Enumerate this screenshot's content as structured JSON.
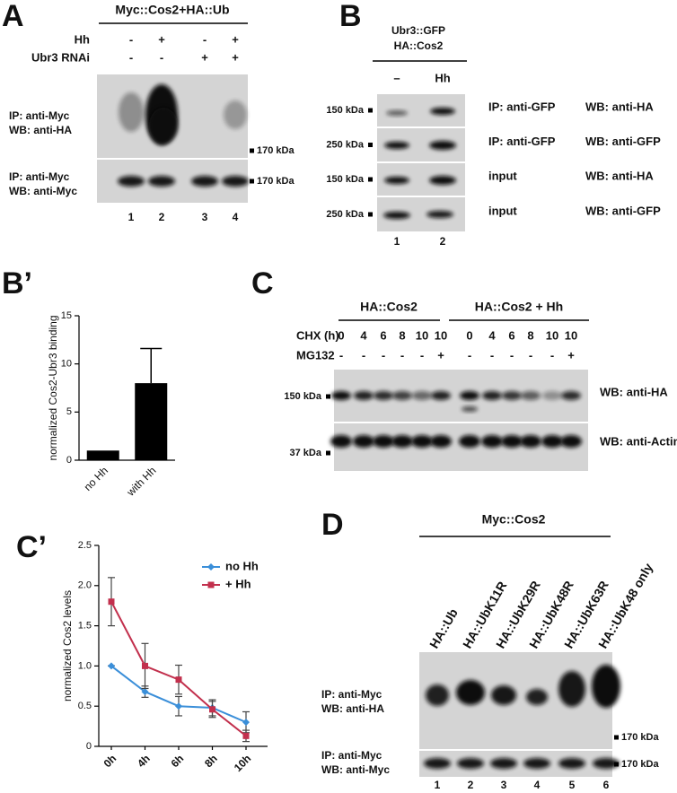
{
  "panel_a": {
    "label": "A",
    "title": "Myc::Cos2+HA::Ub",
    "conditions": [
      {
        "name": "Hh",
        "values": [
          "-",
          "+",
          "-",
          "+"
        ]
      },
      {
        "name": "Ubr3 RNAi",
        "values": [
          "-",
          "-",
          "+",
          "+"
        ]
      }
    ],
    "blots": [
      {
        "lines": [
          "IP: anti-Myc",
          "WB: anti-HA"
        ],
        "marker": "170 kDa"
      },
      {
        "lines": [
          "IP: anti-Myc",
          "WB: anti-Myc"
        ],
        "marker": "170 kDa"
      }
    ],
    "lanes": [
      "1",
      "2",
      "3",
      "4"
    ]
  },
  "panel_b": {
    "label": "B",
    "constructs": [
      "Ubr3::GFP",
      "HA::Cos2"
    ],
    "conditions": [
      "–",
      "Hh"
    ],
    "blots": [
      {
        "marker": "150 kDa",
        "lines": [
          "IP: anti-GFP",
          "WB: anti-HA"
        ]
      },
      {
        "marker": "250 kDa",
        "lines": [
          "IP: anti-GFP",
          "WB: anti-GFP"
        ]
      },
      {
        "marker": "150 kDa",
        "lines": [
          "input",
          "WB: anti-HA"
        ]
      },
      {
        "marker": "250 kDa",
        "lines": [
          "input",
          "WB: anti-GFP"
        ]
      }
    ],
    "lanes": [
      "1",
      "2"
    ]
  },
  "panel_c": {
    "label": "C",
    "groups": [
      "HA::Cos2",
      "HA::Cos2 + Hh"
    ],
    "conditions": [
      {
        "name": "CHX (h)",
        "values": [
          "0",
          "4",
          "6",
          "8",
          "10",
          "10",
          "0",
          "4",
          "6",
          "8",
          "10",
          "10"
        ]
      },
      {
        "name": "MG132",
        "values": [
          "-",
          "-",
          "-",
          "-",
          "-",
          "+",
          "-",
          "-",
          "-",
          "-",
          "-",
          "+"
        ]
      }
    ],
    "blots": [
      {
        "marker": "150 kDa",
        "lines": [
          "WB: anti-HA"
        ]
      },
      {
        "marker": "37 kDa",
        "lines": [
          "WB: anti-Actin"
        ]
      }
    ]
  },
  "panel_d": {
    "label": "D",
    "title": "Myc::Cos2",
    "constructs": [
      "HA::Ub",
      "HA::UbK11R",
      "HA::UbK29R",
      "HA::UbK48R",
      "HA::UbK63R",
      "HA::UbK48 only"
    ],
    "blots": [
      {
        "lines": [
          "IP: anti-Myc",
          "WB: anti-HA"
        ],
        "marker": "170 kDa"
      },
      {
        "lines": [
          "IP: anti-Myc",
          "WB: anti-Myc"
        ],
        "marker": "170 kDa"
      }
    ],
    "lanes": [
      "1",
      "2",
      "3",
      "4",
      "5",
      "6"
    ]
  },
  "chart_data": [
    {
      "type": "bar",
      "panel_label": "B’",
      "ylabel": "normalized Cos2-Ubr3 binding",
      "categories": [
        "no Hh",
        "with Hh"
      ],
      "values": [
        1,
        8
      ],
      "errors": [
        null,
        3.6
      ],
      "color": "#000000",
      "ylim": [
        0,
        15
      ],
      "yticks": [
        0,
        5,
        10,
        15
      ],
      "grid": false
    },
    {
      "type": "line",
      "panel_label": "C’",
      "ylabel": "normalized Cos2 levels",
      "categories": [
        "0h",
        "4h",
        "6h",
        "8h",
        "10h"
      ],
      "series": [
        {
          "name": "no Hh",
          "color": "#3b8fd9",
          "values": [
            1.0,
            0.68,
            0.5,
            0.48,
            0.3
          ],
          "errors": [
            0,
            0.07,
            0.12,
            0.1,
            0.13
          ]
        },
        {
          "name": "+ Hh",
          "color": "#c2304d",
          "values": [
            1.8,
            1.0,
            0.83,
            0.46,
            0.13
          ],
          "errors": [
            0.3,
            0.28,
            0.18,
            0.1,
            0.07
          ]
        }
      ],
      "ylim": [
        0,
        2.5
      ],
      "yticks": [
        0,
        0.5,
        {
          "value": 1,
          "label": "1.0"
        },
        1.5,
        {
          "value": 2,
          "label": "2.0"
        },
        2.5
      ],
      "grid": false,
      "legend": "upper right"
    }
  ]
}
